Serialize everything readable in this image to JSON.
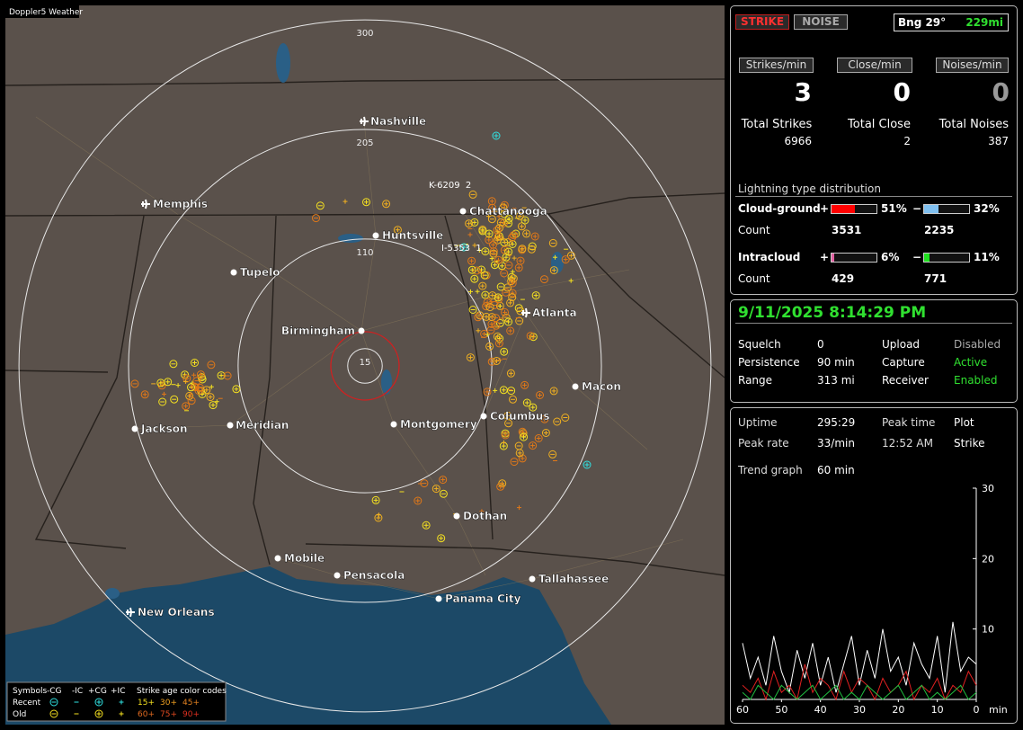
{
  "map": {
    "title": "Doppler5 Weather",
    "range_rings": [
      15,
      110,
      205,
      300
    ],
    "cities": [
      "Nashville",
      "Memphis",
      "Chattanooga",
      "Huntsville",
      "Tupelo",
      "Birmingham",
      "Atlanta",
      "Macon",
      "Jackson",
      "Meridian",
      "Montgomery",
      "Columbus",
      "Dothan",
      "Mobile",
      "Pensacola",
      "Tallahassee",
      "Panama City",
      "New Orleans"
    ],
    "strike_tags": [
      "K-6209  2",
      "I-5353  1"
    ]
  },
  "legend": {
    "header": [
      "Symbols",
      "-CG",
      "-IC",
      "+CG",
      "+IC",
      "Strike age color codes"
    ],
    "rows": [
      {
        "label": "Recent",
        "ages": [
          "15+",
          "30+",
          "45+"
        ]
      },
      {
        "label": "Old",
        "ages": [
          "60+",
          "75+",
          "90+"
        ]
      }
    ]
  },
  "panel": {
    "mode_buttons": [
      "STRIKE",
      "NOISE"
    ],
    "bearing": "Bng 29°",
    "distance": "229mi",
    "rates": [
      {
        "label": "Strikes/min",
        "value": 3
      },
      {
        "label": "Close/min",
        "value": 0
      },
      {
        "label": "Noises/min",
        "value": 0
      }
    ],
    "totals": [
      {
        "label": "Total Strikes",
        "value": 6966
      },
      {
        "label": "Total Close",
        "value": 2
      },
      {
        "label": "Total Noises",
        "value": 387
      }
    ],
    "distribution": {
      "title": "Lightning type distribution",
      "count_label": "Count",
      "types": [
        {
          "label": "Cloud-ground",
          "signs": [
            "+",
            "−"
          ],
          "values": [
            51,
            32
          ],
          "value_labels": [
            "51%",
            "32%"
          ],
          "counts": [
            3531,
            2235
          ]
        },
        {
          "label": "Intracloud",
          "signs": [
            "+",
            "−"
          ],
          "values": [
            6,
            11
          ],
          "value_labels": [
            "6%",
            "11%"
          ],
          "counts": [
            429,
            771
          ]
        }
      ]
    },
    "datetime": "9/11/2025 8:14:29 PM",
    "status": [
      [
        "Squelch",
        "0",
        "Upload",
        "Disabled"
      ],
      [
        "Persistence",
        "90 min",
        "Capture",
        "Active"
      ],
      [
        "Range",
        "313 mi",
        "Receiver",
        "Enabled"
      ]
    ],
    "stats": [
      [
        "Uptime",
        "295:29",
        "Peak time",
        "Plot"
      ],
      [
        "Peak rate",
        "33/min",
        "12:52 AM",
        "Strike"
      ]
    ],
    "trend_label": "Trend graph",
    "trend_window": "60 min",
    "trend": {
      "ylim": [
        0,
        30
      ],
      "yticks": [
        10,
        20,
        30
      ],
      "xlim": [
        60,
        0
      ],
      "xticks": [
        60,
        50,
        40,
        30,
        20,
        10,
        0
      ],
      "x_unit": "min",
      "x": [
        60,
        58,
        56,
        54,
        52,
        50,
        48,
        46,
        44,
        42,
        40,
        38,
        36,
        34,
        32,
        30,
        28,
        26,
        24,
        22,
        20,
        18,
        16,
        14,
        12,
        10,
        8,
        6,
        4,
        2,
        0
      ],
      "series": [
        {
          "color": "#ffffff",
          "values": [
            8,
            3,
            6,
            2,
            9,
            4,
            1,
            7,
            3,
            8,
            2,
            6,
            1,
            5,
            9,
            2,
            7,
            3,
            10,
            4,
            6,
            2,
            8,
            5,
            3,
            9,
            1,
            11,
            4,
            6,
            5
          ]
        },
        {
          "color": "#e02020",
          "values": [
            2,
            1,
            3,
            0,
            4,
            1,
            2,
            0,
            5,
            1,
            3,
            2,
            0,
            4,
            1,
            3,
            2,
            0,
            3,
            1,
            2,
            4,
            0,
            2,
            1,
            3,
            0,
            2,
            1,
            4,
            2
          ]
        },
        {
          "color": "#20c040",
          "values": [
            1,
            0,
            2,
            1,
            0,
            2,
            1,
            0,
            1,
            2,
            0,
            1,
            2,
            0,
            1,
            0,
            2,
            1,
            0,
            1,
            2,
            0,
            1,
            2,
            0,
            1,
            0,
            1,
            2,
            0,
            1
          ]
        }
      ]
    }
  }
}
